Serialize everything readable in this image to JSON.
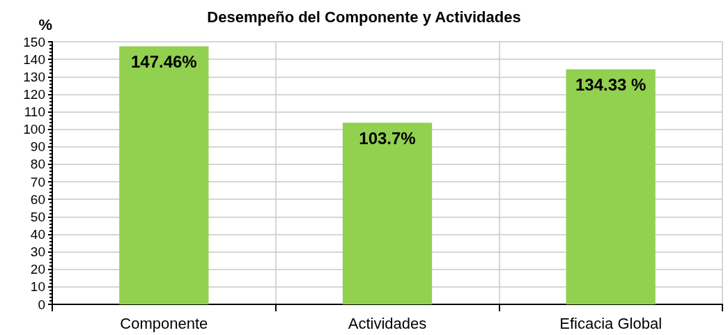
{
  "chart_data": {
    "type": "bar",
    "title": "Desempeño del Componente y Actividades",
    "ylabel": "%",
    "categories": [
      "Componente",
      "Actividades",
      "Eficacia Global"
    ],
    "values": [
      147.46,
      103.7,
      134.33
    ],
    "value_labels": [
      "147.46%",
      "103.7%",
      "134.33 %"
    ],
    "color": "#92d050",
    "ylim": [
      0,
      150
    ],
    "yticks": [
      0,
      10,
      20,
      30,
      40,
      50,
      60,
      70,
      80,
      90,
      100,
      110,
      120,
      130,
      140,
      150
    ],
    "grid": true
  }
}
